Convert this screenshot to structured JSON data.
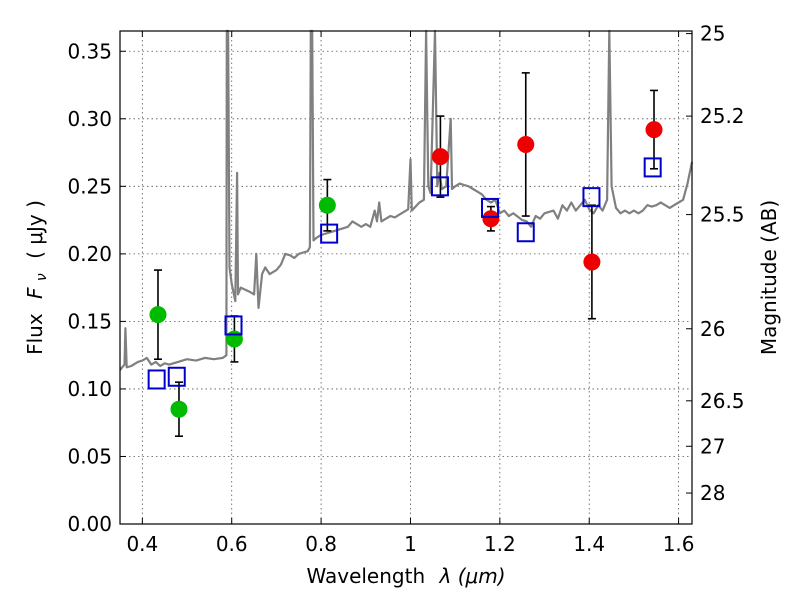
{
  "chart_data": {
    "type": "scatter",
    "xlabel_text": "Wavelength",
    "xlabel_math": "λ (μm)",
    "ylabel_text": "Flux",
    "ylabel_math": "( μJy )",
    "ylabel_math_fnu": "F",
    "ylabel_math_sub": "ν",
    "y2label": "Magnitude (AB)",
    "xlim": [
      0.35,
      1.63
    ],
    "ylim": [
      0.0,
      0.365
    ],
    "x_ticks": [
      0.4,
      0.6,
      0.8,
      1.0,
      1.2,
      1.4,
      1.6
    ],
    "x_tick_labels": [
      "0.4",
      "0.6",
      "0.8",
      "1",
      "1.2",
      "1.4",
      "1.6"
    ],
    "y_ticks": [
      0.0,
      0.05,
      0.1,
      0.15,
      0.2,
      0.25,
      0.3,
      0.35
    ],
    "y_tick_labels": [
      "0.00",
      "0.05",
      "0.10",
      "0.15",
      "0.20",
      "0.25",
      "0.30",
      "0.35"
    ],
    "y2_ticks": [
      25,
      25.2,
      25.5,
      26,
      26.5,
      27,
      28
    ],
    "y2_tick_labels": [
      "25",
      "25.2",
      "25.5",
      "26",
      "26.5",
      "27",
      "28"
    ],
    "grid": true,
    "series": [
      {
        "name": "green points",
        "color": "#00bb00",
        "marker": "circle",
        "points": [
          {
            "x": 0.435,
            "y": 0.155,
            "err": 0.033
          },
          {
            "x": 0.482,
            "y": 0.085,
            "err": 0.02
          },
          {
            "x": 0.606,
            "y": 0.137,
            "err": 0.017
          },
          {
            "x": 0.814,
            "y": 0.236,
            "err": 0.019
          }
        ]
      },
      {
        "name": "red points",
        "color": "#ee0000",
        "marker": "circle",
        "points": [
          {
            "x": 1.067,
            "y": 0.272,
            "err": 0.03
          },
          {
            "x": 1.18,
            "y": 0.226,
            "err": 0.009
          },
          {
            "x": 1.258,
            "y": 0.281,
            "err": 0.053
          },
          {
            "x": 1.406,
            "y": 0.194,
            "err": 0.042
          },
          {
            "x": 1.545,
            "y": 0.292,
            "err": 0.029
          }
        ]
      },
      {
        "name": "model photometry",
        "color": "#0000cc",
        "marker": "square",
        "points": [
          {
            "x": 0.432,
            "y": 0.107
          },
          {
            "x": 0.477,
            "y": 0.109
          },
          {
            "x": 0.604,
            "y": 0.147
          },
          {
            "x": 0.818,
            "y": 0.215
          },
          {
            "x": 1.066,
            "y": 0.25
          },
          {
            "x": 1.178,
            "y": 0.234
          },
          {
            "x": 1.258,
            "y": 0.216
          },
          {
            "x": 1.405,
            "y": 0.242
          },
          {
            "x": 1.542,
            "y": 0.264
          }
        ]
      }
    ],
    "spectrum": {
      "name": "model spectrum",
      "color": "#808080",
      "points": [
        [
          0.35,
          0.114
        ],
        [
          0.36,
          0.118
        ],
        [
          0.362,
          0.145
        ],
        [
          0.365,
          0.116
        ],
        [
          0.375,
          0.117
        ],
        [
          0.39,
          0.12
        ],
        [
          0.4,
          0.121
        ],
        [
          0.41,
          0.123
        ],
        [
          0.42,
          0.118
        ],
        [
          0.43,
          0.12
        ],
        [
          0.44,
          0.117
        ],
        [
          0.45,
          0.119
        ],
        [
          0.46,
          0.118
        ],
        [
          0.48,
          0.12
        ],
        [
          0.5,
          0.122
        ],
        [
          0.52,
          0.121
        ],
        [
          0.54,
          0.123
        ],
        [
          0.56,
          0.122
        ],
        [
          0.58,
          0.123
        ],
        [
          0.588,
          0.125
        ],
        [
          0.589,
          0.365
        ],
        [
          0.592,
          0.365
        ],
        [
          0.595,
          0.19
        ],
        [
          0.6,
          0.178
        ],
        [
          0.608,
          0.165
        ],
        [
          0.612,
          0.26
        ],
        [
          0.614,
          0.17
        ],
        [
          0.62,
          0.175
        ],
        [
          0.64,
          0.172
        ],
        [
          0.65,
          0.17
        ],
        [
          0.655,
          0.2
        ],
        [
          0.66,
          0.16
        ],
        [
          0.668,
          0.185
        ],
        [
          0.675,
          0.19
        ],
        [
          0.685,
          0.185
        ],
        [
          0.7,
          0.188
        ],
        [
          0.71,
          0.192
        ],
        [
          0.72,
          0.2
        ],
        [
          0.73,
          0.199
        ],
        [
          0.74,
          0.197
        ],
        [
          0.75,
          0.2
        ],
        [
          0.76,
          0.201
        ],
        [
          0.77,
          0.202
        ],
        [
          0.775,
          0.205
        ],
        [
          0.777,
          0.365
        ],
        [
          0.78,
          0.365
        ],
        [
          0.783,
          0.21
        ],
        [
          0.79,
          0.212
        ],
        [
          0.8,
          0.214
        ],
        [
          0.82,
          0.216
        ],
        [
          0.84,
          0.218
        ],
        [
          0.86,
          0.22
        ],
        [
          0.87,
          0.224
        ],
        [
          0.88,
          0.222
        ],
        [
          0.89,
          0.22
        ],
        [
          0.9,
          0.222
        ],
        [
          0.91,
          0.22
        ],
        [
          0.92,
          0.232
        ],
        [
          0.925,
          0.224
        ],
        [
          0.93,
          0.238
        ],
        [
          0.935,
          0.224
        ],
        [
          0.945,
          0.226
        ],
        [
          0.955,
          0.228
        ],
        [
          0.965,
          0.227
        ],
        [
          0.98,
          0.23
        ],
        [
          0.995,
          0.233
        ],
        [
          1.0,
          0.27
        ],
        [
          1.003,
          0.232
        ],
        [
          1.02,
          0.238
        ],
        [
          1.03,
          0.24
        ],
        [
          1.035,
          0.365
        ],
        [
          1.04,
          0.25
        ],
        [
          1.045,
          0.245
        ],
        [
          1.055,
          0.365
        ],
        [
          1.06,
          0.25
        ],
        [
          1.065,
          0.26
        ],
        [
          1.07,
          0.248
        ],
        [
          1.08,
          0.25
        ],
        [
          1.09,
          0.3
        ],
        [
          1.093,
          0.248
        ],
        [
          1.1,
          0.25
        ],
        [
          1.11,
          0.252
        ],
        [
          1.12,
          0.251
        ],
        [
          1.13,
          0.25
        ],
        [
          1.14,
          0.248
        ],
        [
          1.15,
          0.246
        ],
        [
          1.16,
          0.244
        ],
        [
          1.17,
          0.24
        ],
        [
          1.18,
          0.238
        ],
        [
          1.19,
          0.24
        ],
        [
          1.2,
          0.23
        ],
        [
          1.21,
          0.232
        ],
        [
          1.22,
          0.228
        ],
        [
          1.23,
          0.23
        ],
        [
          1.25,
          0.225
        ],
        [
          1.26,
          0.224
        ],
        [
          1.27,
          0.22
        ],
        [
          1.28,
          0.228
        ],
        [
          1.29,
          0.226
        ],
        [
          1.3,
          0.23
        ],
        [
          1.32,
          0.232
        ],
        [
          1.33,
          0.226
        ],
        [
          1.34,
          0.236
        ],
        [
          1.35,
          0.232
        ],
        [
          1.36,
          0.238
        ],
        [
          1.37,
          0.232
        ],
        [
          1.38,
          0.236
        ],
        [
          1.39,
          0.24
        ],
        [
          1.4,
          0.233
        ],
        [
          1.41,
          0.23
        ],
        [
          1.42,
          0.236
        ],
        [
          1.43,
          0.232
        ],
        [
          1.44,
          0.24
        ],
        [
          1.445,
          0.365
        ],
        [
          1.45,
          0.25
        ],
        [
          1.46,
          0.234
        ],
        [
          1.47,
          0.23
        ],
        [
          1.48,
          0.232
        ],
        [
          1.49,
          0.23
        ],
        [
          1.5,
          0.232
        ],
        [
          1.51,
          0.23
        ],
        [
          1.52,
          0.232
        ],
        [
          1.53,
          0.236
        ],
        [
          1.54,
          0.235
        ],
        [
          1.55,
          0.236
        ],
        [
          1.56,
          0.238
        ],
        [
          1.57,
          0.236
        ],
        [
          1.58,
          0.234
        ],
        [
          1.59,
          0.236
        ],
        [
          1.6,
          0.238
        ],
        [
          1.61,
          0.24
        ],
        [
          1.62,
          0.252
        ],
        [
          1.63,
          0.268
        ]
      ]
    }
  }
}
